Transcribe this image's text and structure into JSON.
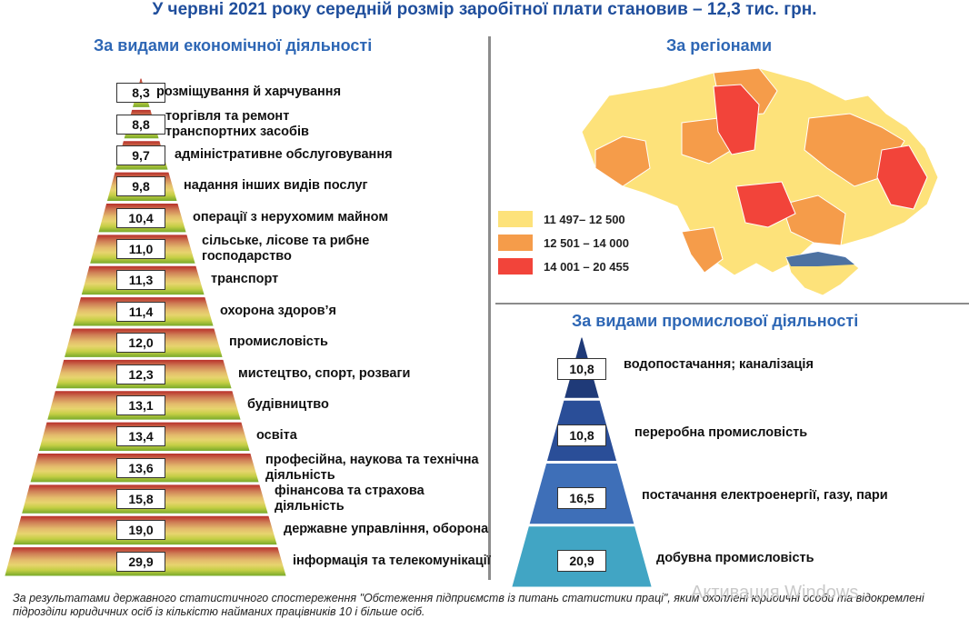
{
  "title": "У червні 2021 року середній розмір заробітної плати становив – 12,3 тис. грн.",
  "left_panel": {
    "subtitle": "За видами економічної діяльності"
  },
  "region_panel": {
    "subtitle": "За регіонами"
  },
  "industry_panel": {
    "subtitle": "За видами промислової діяльності"
  },
  "chart_data": [
    {
      "type": "bar",
      "title": "За видами економічної діяльності",
      "categories": [
        "розміщування й харчування",
        "торгівля та ремонт транспортних засобів",
        "адміністративне обслуговування",
        "надання інших видів послуг",
        "операції з нерухомим майном",
        "сільське, лісове та рибне господарство",
        "транспорт",
        "охорона здоров’я",
        "промисловість",
        "мистецтво, спорт, розваги",
        "будівництво",
        "освіта",
        "професійна, наукова та технічна діяльність",
        "фінансова та страхова діяльність",
        "державне управління, оборона",
        "інформація та телекомунікації"
      ],
      "value_labels": [
        "8,3",
        "8,8",
        "9,7",
        "9,8",
        "10,4",
        "11,0",
        "11,3",
        "11,4",
        "12,0",
        "12,3",
        "13,1",
        "13,4",
        "13,6",
        "15,8",
        "19,0",
        "29,9"
      ],
      "values": [
        8.3,
        8.8,
        9.7,
        9.8,
        10.4,
        11.0,
        11.3,
        11.4,
        12.0,
        12.3,
        13.1,
        13.4,
        13.6,
        15.8,
        19.0,
        29.9
      ]
    },
    {
      "type": "bar",
      "title": "За видами промислової діяльності",
      "categories": [
        "водопостачання; каналізація",
        "переробна промисловість",
        "постачання електроенергії, газу, пари",
        "добувна промисловість"
      ],
      "value_labels": [
        "10,8",
        "10,8",
        "16,5",
        "20,9"
      ],
      "values": [
        10.8,
        10.8,
        16.5,
        20.9
      ],
      "colors": [
        "#1f3a78",
        "#2a4e98",
        "#3e6fb8",
        "#41a5c4"
      ]
    }
  ],
  "map": {
    "legend": [
      {
        "label": "11 497– 12 500",
        "color": "#fde27a"
      },
      {
        "label": "12 501 – 14 000",
        "color": "#f59c4a"
      },
      {
        "label": "14 001 – 20 455",
        "color": "#f2443a"
      }
    ]
  },
  "footnote": "За результатами державного статистичного спостереження \"Обстеження підприємств із питань статистики праці\", яким охоплені юридичні особи та відокремлені підрозділи юридичних осіб із кількістю найманих працівників 10 і більше осіб.",
  "watermark": "Активация Windows"
}
